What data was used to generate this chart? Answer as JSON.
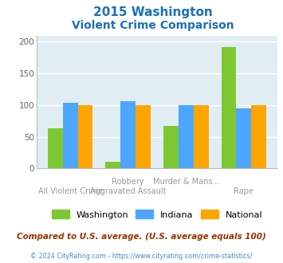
{
  "title_line1": "2015 Washington",
  "title_line2": "Violent Crime Comparison",
  "x_labels_top": [
    "",
    "Robbery",
    "Murder & Mans...",
    ""
  ],
  "x_labels_bottom": [
    "All Violent Crime",
    "Aggravated Assault",
    "",
    "Rape"
  ],
  "washington": [
    63,
    10,
    67,
    192
  ],
  "indiana": [
    103,
    106,
    100,
    95
  ],
  "national": [
    100,
    100,
    100,
    100
  ],
  "washington_label": "Washington",
  "indiana_label": "Indiana",
  "national_label": "National",
  "color_washington": "#7DC832",
  "color_indiana": "#4DA6FF",
  "color_national": "#FFA500",
  "ylim": [
    0,
    210
  ],
  "yticks": [
    0,
    50,
    100,
    150,
    200
  ],
  "bg_color": "#E0EEF4",
  "title_color": "#1A6EBF",
  "xlabel_color": "#999999",
  "footer_text": "Compared to U.S. average. (U.S. average equals 100)",
  "copyright_text": "© 2024 CityRating.com - https://www.cityrating.com/crime-statistics/",
  "footer_color": "#993300",
  "copyright_color": "#4488CC"
}
